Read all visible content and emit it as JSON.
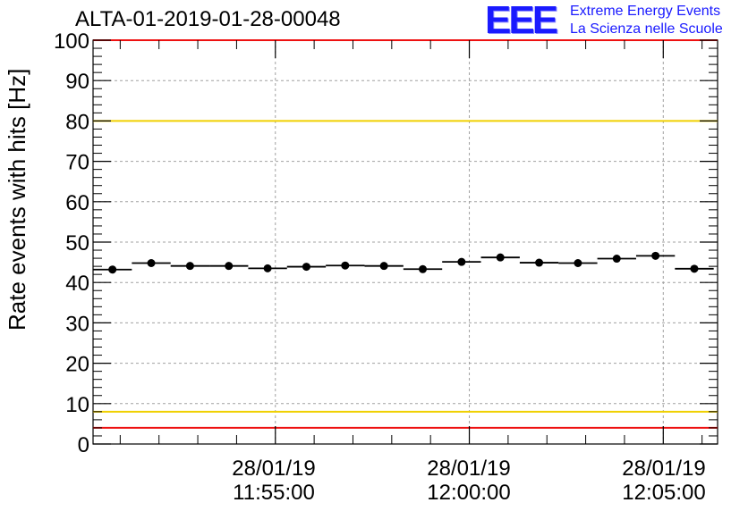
{
  "header": {
    "title": "ALTA-01-2019-01-28-00048",
    "logo_text": "EEE",
    "logo_line1": "Extreme Energy Events",
    "logo_line2": "La Scienza nelle Scuole"
  },
  "colors": {
    "red_line": "#ee1111",
    "yellow_line": "#f0d000",
    "logo_blue": "#1a1aff",
    "grid": "#a0a0a0",
    "data": "#000000"
  },
  "chart_data": {
    "type": "scatter",
    "title": "ALTA-01-2019-01-28-00048",
    "xlabel": "",
    "ylabel": "Rate events with hits [Hz]",
    "ylim": [
      0,
      100
    ],
    "y_ticks": [
      "0",
      "10",
      "20",
      "30",
      "40",
      "50",
      "60",
      "70",
      "80",
      "90",
      "100"
    ],
    "xlim_minutes": [
      -4.7,
      11.4
    ],
    "x_unit": "minutes after 28/01/19 11:55:00",
    "x_tick_labels": [
      {
        "minute": 0,
        "date": "28/01/19",
        "time": "11:55:00"
      },
      {
        "minute": 5,
        "date": "28/01/19",
        "time": "12:00:00"
      },
      {
        "minute": 10,
        "date": "28/01/19",
        "time": "12:05:00"
      }
    ],
    "bin_width_minutes": 1.0,
    "x": [
      -4.2,
      -3.2,
      -2.2,
      -1.2,
      -0.2,
      0.8,
      1.8,
      2.8,
      3.8,
      4.8,
      5.8,
      6.8,
      7.8,
      8.8,
      9.8,
      10.8
    ],
    "values": [
      43.2,
      44.8,
      44.1,
      44.1,
      43.5,
      43.9,
      44.2,
      44.1,
      43.3,
      45.1,
      46.2,
      44.9,
      44.8,
      45.9,
      46.6,
      43.4
    ],
    "reference_lines": [
      {
        "name": "upper-red",
        "y": 100,
        "color": "#ee1111"
      },
      {
        "name": "upper-yellow",
        "y": 80,
        "color": "#f0d000"
      },
      {
        "name": "lower-yellow",
        "y": 8,
        "color": "#f0d000"
      },
      {
        "name": "lower-red",
        "y": 4,
        "color": "#ee1111"
      }
    ],
    "grid": true
  }
}
